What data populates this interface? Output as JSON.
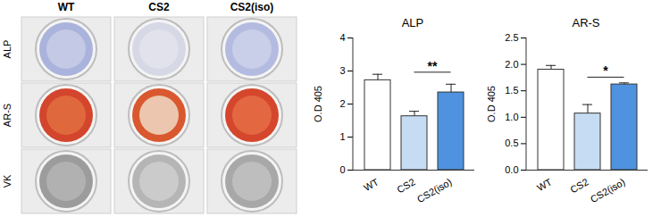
{
  "image_panel": {
    "columns": [
      "WT",
      "CS2",
      "CS2(iso)"
    ],
    "rows": [
      "ALP",
      "AR-S",
      "VK"
    ]
  },
  "chart_data": [
    {
      "type": "bar",
      "title": "ALP",
      "ylabel": "O.D 405",
      "categories": [
        "WT",
        "CS2",
        "CS2(iso)"
      ],
      "values": [
        2.72,
        1.63,
        2.35
      ],
      "errors": [
        0.18,
        0.15,
        0.25
      ],
      "colors": [
        "#ffffff",
        "#c6dcf3",
        "#4f93e0"
      ],
      "ylim": [
        0,
        4
      ],
      "yticks": [
        0,
        1,
        2,
        3,
        4
      ],
      "annotations": [
        {
          "text": "**",
          "from": "CS2",
          "to": "CS2(iso)",
          "y": 2.95
        }
      ]
    },
    {
      "type": "bar",
      "title": "AR-S",
      "ylabel": "O.D 405",
      "categories": [
        "WT",
        "CS2",
        "CS2(iso)"
      ],
      "values": [
        1.9,
        1.07,
        1.62
      ],
      "errors": [
        0.08,
        0.17,
        0.03
      ],
      "colors": [
        "#ffffff",
        "#c6dcf3",
        "#4f93e0"
      ],
      "ylim": [
        0,
        2.5
      ],
      "yticks": [
        {
          "value": 0,
          "label": "0.0"
        },
        0.5,
        {
          "value": 1,
          "label": "1.0"
        },
        1.5,
        {
          "value": 2,
          "label": "2.0"
        },
        2.5
      ],
      "annotations": [
        {
          "text": "*",
          "from": "CS2",
          "to": "CS2(iso)",
          "y": 1.75
        }
      ]
    }
  ]
}
